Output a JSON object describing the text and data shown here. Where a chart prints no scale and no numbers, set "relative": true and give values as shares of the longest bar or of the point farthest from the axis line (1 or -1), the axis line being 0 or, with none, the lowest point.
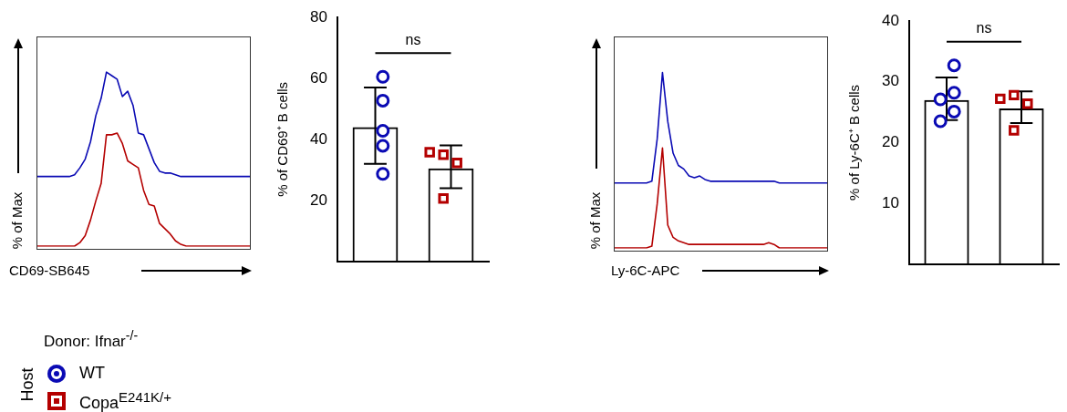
{
  "chart_data": [
    {
      "type": "line",
      "relative": true,
      "xlabel": "CD69-SB645",
      "ylabel": "% of Max",
      "marker": "none",
      "categories": [
        null,
        null,
        null,
        null,
        null,
        null,
        null,
        null,
        null,
        null,
        null,
        null,
        null,
        null,
        null,
        null,
        null,
        null,
        null,
        null,
        null,
        null,
        null,
        null,
        null,
        null,
        null,
        null,
        null,
        null,
        null,
        null,
        null,
        null,
        null,
        null,
        null,
        null,
        null,
        null,
        null
      ],
      "series": [
        {
          "color": "#0a0ab4",
          "values": [
            0.4,
            0.4,
            0.4,
            0.4,
            0.4,
            0.4,
            0.4,
            0.41,
            0.45,
            0.5,
            0.6,
            0.75,
            0.85,
            1,
            0.98,
            0.96,
            0.86,
            0.89,
            0.81,
            0.65,
            0.64,
            0.56,
            0.48,
            0.43,
            0.42,
            0.42,
            0.41,
            0.4,
            0.4,
            0.4,
            0.4,
            0.4,
            0.4,
            0.4,
            0.4,
            0.4,
            0.4,
            0.4,
            0.4,
            0.4,
            0.4
          ]
        },
        {
          "color": "#b40000",
          "values": [
            0,
            0,
            0,
            0,
            0,
            0,
            0,
            0,
            0.02,
            0.06,
            0.15,
            0.26,
            0.36,
            0.64,
            0.64,
            0.65,
            0.59,
            0.49,
            0.47,
            0.45,
            0.32,
            0.24,
            0.23,
            0.13,
            0.1,
            0.07,
            0.03,
            0.01,
            0,
            0,
            0,
            0,
            0,
            0,
            0,
            0,
            0,
            0,
            0,
            0,
            0
          ]
        }
      ]
    },
    {
      "type": "bar",
      "ylabel": "% of CD69⁺ B cells",
      "categories": [
        null,
        null
      ],
      "ylim": [
        0,
        80
      ],
      "yticks": [
        20,
        40,
        60,
        80
      ],
      "legend": "bottom left",
      "legend_title": "Donor: Ifnar$^{-/-}$",
      "annotations": [
        "ns",
        "Host"
      ],
      "series": [
        {
          "type": "bar",
          "color": "#000000",
          "values": [
            44,
            30.5
          ],
          "errors": [
            [
              32,
              57
            ],
            [
              24,
              38
            ]
          ]
        },
        {
          "type": "scatter",
          "name": "WT",
          "color": "#0a0ab4",
          "marker": "circle",
          "values": [
            60.5,
            null
          ]
        },
        {
          "type": "scatter",
          "color": "#0a0ab4",
          "marker": "circle",
          "values": [
            52.7,
            null
          ]
        },
        {
          "type": "scatter",
          "color": "#0a0ab4",
          "marker": "circle",
          "values": [
            42.8,
            null
          ]
        },
        {
          "type": "scatter",
          "color": "#0a0ab4",
          "marker": "circle",
          "values": [
            37.9,
            null
          ]
        },
        {
          "type": "scatter",
          "color": "#0a0ab4",
          "marker": "circle",
          "values": [
            28.7,
            null
          ]
        },
        {
          "type": "scatter",
          "name": "Copa$^{E241K/+}$",
          "color": "#b40000",
          "marker": "square",
          "values": [
            null,
            35
          ]
        },
        {
          "type": "scatter",
          "color": "#b40000",
          "marker": "square",
          "values": [
            null,
            35.8
          ]
        },
        {
          "type": "scatter",
          "color": "#b40000",
          "marker": "square",
          "values": [
            null,
            32.3
          ]
        },
        {
          "type": "scatter",
          "color": "#b40000",
          "marker": "square",
          "values": [
            null,
            20.6
          ]
        }
      ]
    },
    {
      "type": "line",
      "relative": true,
      "xlabel": "Ly-6C-APC",
      "ylabel": "% of Max",
      "marker": "none",
      "categories": [
        null,
        null,
        null,
        null,
        null,
        null,
        null,
        null,
        null,
        null,
        null,
        null,
        null,
        null,
        null,
        null,
        null,
        null,
        null,
        null,
        null,
        null,
        null,
        null,
        null,
        null,
        null,
        null,
        null,
        null,
        null,
        null,
        null,
        null,
        null,
        null,
        null,
        null,
        null,
        null,
        null
      ],
      "series": [
        {
          "color": "#0a0ab4",
          "values": [
            0.37,
            0.37,
            0.37,
            0.37,
            0.37,
            0.37,
            0.37,
            0.38,
            0.62,
            1,
            0.72,
            0.54,
            0.47,
            0.45,
            0.41,
            0.4,
            0.41,
            0.39,
            0.38,
            0.38,
            0.38,
            0.38,
            0.38,
            0.38,
            0.38,
            0.38,
            0.38,
            0.38,
            0.38,
            0.38,
            0.38,
            0.37,
            0.37,
            0.37,
            0.37,
            0.37,
            0.37,
            0.37,
            0.37,
            0.37,
            0.37
          ]
        },
        {
          "color": "#b40000",
          "values": [
            0,
            0,
            0,
            0,
            0,
            0,
            0,
            0.01,
            0.25,
            0.57,
            0.13,
            0.06,
            0.04,
            0.03,
            0.02,
            0.02,
            0.02,
            0.02,
            0.02,
            0.02,
            0.02,
            0.02,
            0.02,
            0.02,
            0.02,
            0.02,
            0.02,
            0.02,
            0.02,
            0.03,
            0.02,
            0,
            0,
            0,
            0,
            0,
            0,
            0,
            0,
            0,
            0
          ]
        }
      ]
    },
    {
      "type": "bar",
      "ylabel": "% of Ly-6C⁺ B cells",
      "categories": [
        null,
        null
      ],
      "ylim": [
        0,
        40
      ],
      "yticks": [
        10,
        20,
        30,
        40
      ],
      "annotations": [
        "ns"
      ],
      "series": [
        {
          "type": "bar",
          "color": "#000000",
          "values": [
            27,
            25.6
          ],
          "errors": [
            [
              23.7,
              30.7
            ],
            [
              23.2,
              28.4
            ]
          ]
        },
        {
          "type": "scatter",
          "color": "#0a0ab4",
          "marker": "circle",
          "values": [
            32.7,
            null
          ]
        },
        {
          "type": "scatter",
          "color": "#0a0ab4",
          "marker": "circle",
          "values": [
            28.2,
            null
          ]
        },
        {
          "type": "scatter",
          "color": "#0a0ab4",
          "marker": "circle",
          "values": [
            27.1,
            null
          ]
        },
        {
          "type": "scatter",
          "color": "#0a0ab4",
          "marker": "circle",
          "values": [
            25.1,
            null
          ]
        },
        {
          "type": "scatter",
          "color": "#0a0ab4",
          "marker": "circle",
          "values": [
            23.5,
            null
          ]
        },
        {
          "type": "scatter",
          "color": "#b40000",
          "marker": "square",
          "values": [
            null,
            27.8
          ]
        },
        {
          "type": "scatter",
          "color": "#b40000",
          "marker": "square",
          "values": [
            null,
            27.2
          ]
        },
        {
          "type": "scatter",
          "color": "#b40000",
          "marker": "square",
          "values": [
            null,
            26.4
          ]
        },
        {
          "type": "scatter",
          "color": "#b40000",
          "marker": "square",
          "values": [
            null,
            22
          ]
        }
      ]
    }
  ]
}
